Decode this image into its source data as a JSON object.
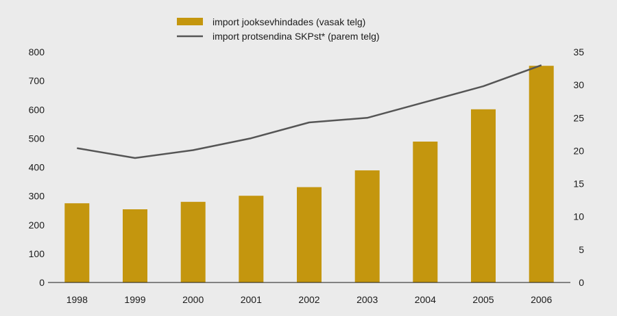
{
  "chart_data": {
    "type": "bar",
    "categories": [
      "1998",
      "1999",
      "2000",
      "2001",
      "2002",
      "2003",
      "2004",
      "2005",
      "2006"
    ],
    "series": [
      {
        "name": "import jooksevhindades (vasak telg)",
        "type": "bar",
        "axis": "left",
        "color": "#c4960e",
        "values": [
          275,
          254,
          280,
          301,
          331,
          389,
          489,
          601,
          752
        ]
      },
      {
        "name": "import protsendina SKPst* (parem telg)",
        "type": "line",
        "axis": "right",
        "color": "#555555",
        "values": [
          20.4,
          18.9,
          20.1,
          21.9,
          24.3,
          25.0,
          27.4,
          29.8,
          33.0
        ]
      }
    ],
    "y_left": {
      "ylim": [
        0,
        800
      ],
      "ticks": [
        "0",
        "100",
        "200",
        "300",
        "400",
        "500",
        "600",
        "700",
        "800"
      ]
    },
    "y_right": {
      "ylim": [
        0,
        35
      ],
      "ticks": [
        "0",
        "5",
        "10",
        "15",
        "20",
        "25",
        "30",
        "35"
      ]
    },
    "grid": false,
    "legend_position": "top-center",
    "title": "",
    "xlabel": "",
    "ylabel": ""
  }
}
